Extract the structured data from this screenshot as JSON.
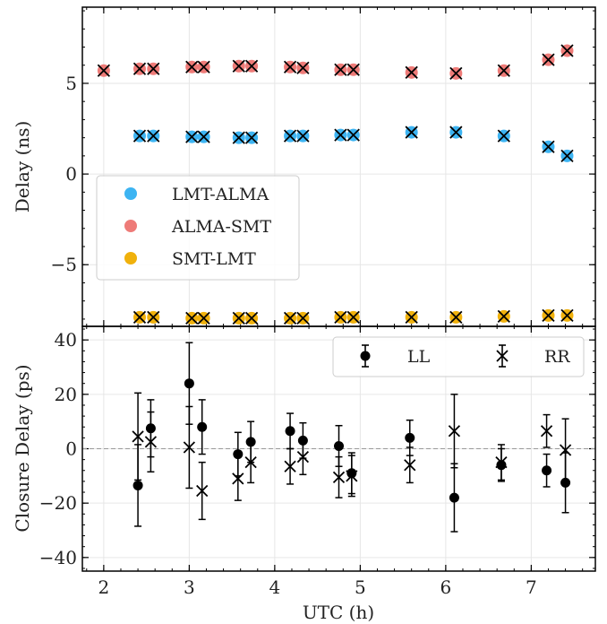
{
  "chart_data": [
    {
      "type": "scatter",
      "ylabel": "Delay (ns)",
      "xlim": [
        1.75,
        7.75
      ],
      "ylim": [
        -8.4,
        9.2
      ],
      "yticks": [
        5,
        0,
        -5
      ],
      "ytick_labels": [
        "5",
        "0",
        "−5"
      ],
      "grid": true,
      "legend": {
        "placement": "lower-left",
        "entries": [
          "LMT-ALMA",
          "ALMA-SMT",
          "SMT-LMT"
        ]
      },
      "series": [
        {
          "name": "LMT-ALMA",
          "color": "#3db4f2",
          "x": [
            2.42,
            2.58,
            3.03,
            3.17,
            3.58,
            3.73,
            4.18,
            4.33,
            4.77,
            4.92,
            5.6,
            6.12,
            6.68,
            7.2,
            7.42
          ],
          "y": [
            2.1,
            2.1,
            2.05,
            2.05,
            2.0,
            2.0,
            2.1,
            2.1,
            2.15,
            2.15,
            2.3,
            2.3,
            2.1,
            1.5,
            1.0
          ]
        },
        {
          "name": "ALMA-SMT",
          "color": "#ee7b78",
          "x": [
            2.0,
            2.42,
            2.58,
            3.03,
            3.17,
            3.58,
            3.73,
            4.18,
            4.33,
            4.77,
            4.92,
            5.6,
            6.12,
            6.68,
            7.2,
            7.42
          ],
          "y": [
            5.7,
            5.8,
            5.8,
            5.9,
            5.9,
            5.95,
            5.95,
            5.9,
            5.85,
            5.75,
            5.75,
            5.6,
            5.55,
            5.7,
            6.3,
            6.8
          ]
        },
        {
          "name": "SMT-LMT",
          "color": "#f0b10c",
          "x": [
            2.42,
            2.58,
            3.03,
            3.17,
            3.58,
            3.73,
            4.18,
            4.33,
            4.77,
            4.92,
            5.6,
            6.12,
            6.68,
            7.2,
            7.42
          ],
          "y": [
            -7.9,
            -7.9,
            -7.95,
            -7.95,
            -7.95,
            -7.95,
            -7.95,
            -7.95,
            -7.9,
            -7.9,
            -7.9,
            -7.9,
            -7.85,
            -7.8,
            -7.8
          ]
        }
      ]
    },
    {
      "type": "scatter",
      "xlabel": "UTC (h)",
      "ylabel": "Closure Delay (ps)",
      "xlim": [
        1.75,
        7.75
      ],
      "ylim": [
        -45,
        45
      ],
      "xticks": [
        2,
        3,
        4,
        5,
        6,
        7
      ],
      "xtick_labels": [
        "2",
        "3",
        "4",
        "5",
        "6",
        "7"
      ],
      "yticks": [
        40,
        20,
        0,
        -20,
        -40
      ],
      "ytick_labels": [
        "40",
        "20",
        "0",
        "−20",
        "−40"
      ],
      "reference_line": 0,
      "grid": true,
      "legend": {
        "placement": "top-right",
        "entries": [
          "LL",
          "RR"
        ]
      },
      "series": [
        {
          "name": "LL",
          "marker": "circle",
          "x": [
            2.4,
            2.55,
            3.0,
            3.15,
            3.57,
            3.72,
            4.18,
            4.33,
            4.75,
            4.9,
            5.58,
            6.1,
            6.65,
            7.18,
            7.4
          ],
          "y": [
            -13.5,
            7.5,
            24.0,
            8.0,
            -2.0,
            2.5,
            6.5,
            3.0,
            1.0,
            -9.0,
            4.0,
            -18.0,
            -6.0,
            -8.0,
            -12.5
          ],
          "err": [
            15.0,
            10.5,
            15.0,
            10.0,
            8.0,
            7.5,
            6.5,
            6.5,
            7.5,
            7.5,
            6.5,
            12.5,
            6.0,
            6.0,
            11.0
          ]
        },
        {
          "name": "RR",
          "marker": "x",
          "x": [
            2.4,
            2.55,
            3.0,
            3.15,
            3.57,
            3.72,
            4.18,
            4.33,
            4.75,
            4.9,
            5.58,
            6.1,
            6.65,
            7.18,
            7.4
          ],
          "y": [
            4.5,
            2.5,
            0.5,
            -15.5,
            -11.0,
            -5.0,
            -6.5,
            -3.0,
            -10.5,
            -10.0,
            -6.0,
            6.5,
            -5.0,
            6.5,
            -0.5
          ],
          "err": [
            16.0,
            11.0,
            15.0,
            10.5,
            8.0,
            7.5,
            6.5,
            6.5,
            7.5,
            7.5,
            6.5,
            13.5,
            6.5,
            6.0,
            11.5
          ]
        }
      ]
    }
  ]
}
